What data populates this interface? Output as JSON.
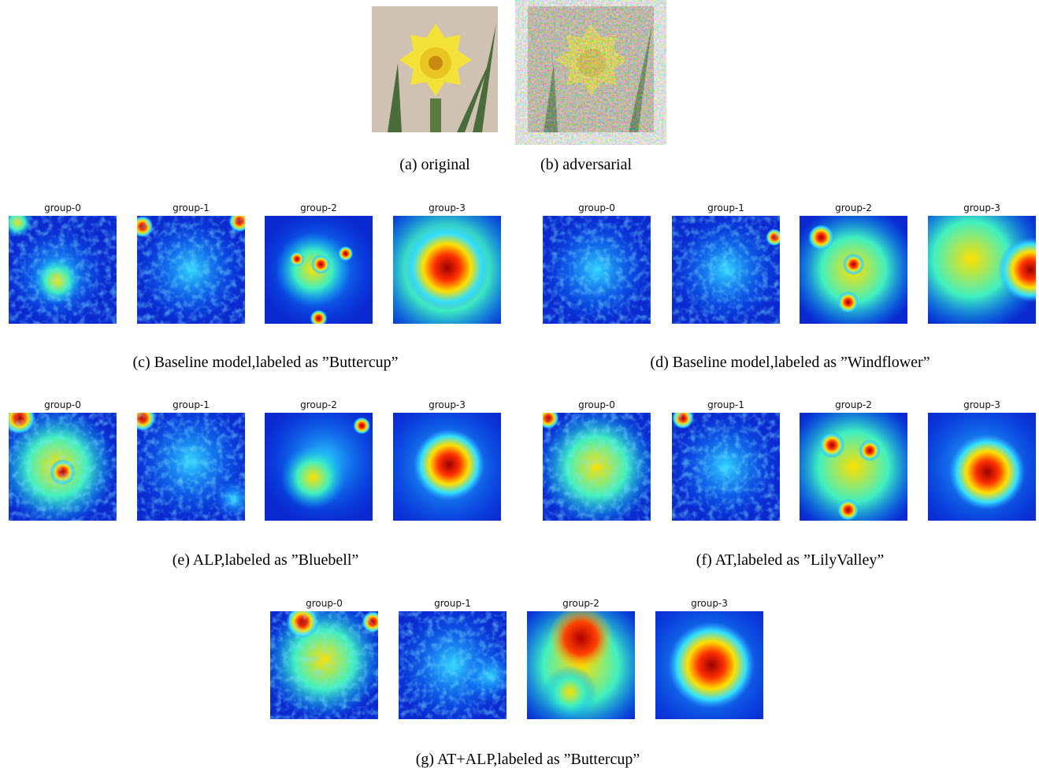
{
  "top_panels": [
    {
      "caption": "(a) original"
    },
    {
      "caption": "(b) adversarial"
    }
  ],
  "heatmap_panels": [
    {
      "groups": [
        "group-0",
        "group-1",
        "group-2",
        "group-3"
      ],
      "caption": "(c) Baseline model,labeled as ”Buttercup”"
    },
    {
      "groups": [
        "group-0",
        "group-1",
        "group-2",
        "group-3"
      ],
      "caption": "(d) Baseline model,labeled as ”Windflower”"
    },
    {
      "groups": [
        "group-0",
        "group-1",
        "group-2",
        "group-3"
      ],
      "caption": "(e) ALP,labeled as ”Bluebell”"
    },
    {
      "groups": [
        "group-0",
        "group-1",
        "group-2",
        "group-3"
      ],
      "caption": "(f) AT,labeled as ”LilyValley”"
    },
    {
      "groups": [
        "group-0",
        "group-1",
        "group-2",
        "group-3"
      ],
      "caption": "(g) AT+ALP,labeled as ”Buttercup”"
    }
  ]
}
